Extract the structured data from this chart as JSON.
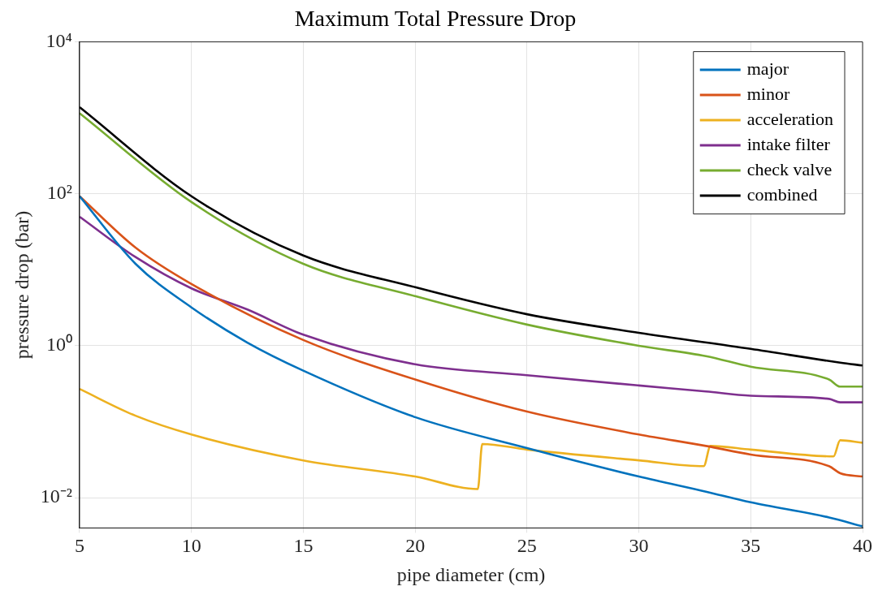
{
  "chart_data": {
    "type": "line",
    "title": "Maximum Total Pressure Drop",
    "xlabel": "pipe diameter (cm)",
    "ylabel": "pressure drop (bar)",
    "log": "y",
    "grid": true,
    "legend": "top right",
    "marker": "none",
    "line_style": "solid",
    "xlim": [
      5,
      40
    ],
    "xticks": [
      5,
      10,
      15,
      20,
      25,
      30,
      35,
      40
    ],
    "ylim": [
      0.004,
      10000
    ],
    "yticks": [
      {
        "value": 0.01,
        "label": "10⁻²"
      },
      {
        "value": 1,
        "label": "10⁰"
      },
      {
        "value": 100,
        "label": "10²"
      },
      {
        "value": 10000,
        "label": "10⁴"
      }
    ],
    "series": [
      {
        "name": "major",
        "color": "#0072bd",
        "x": [
          5,
          7.5,
          10,
          12.5,
          15,
          20,
          25,
          30,
          33,
          35,
          38.5,
          40
        ],
        "values": [
          93,
          12,
          3.2,
          1.1,
          0.47,
          0.115,
          0.045,
          0.019,
          0.012,
          0.0087,
          0.0055,
          0.0042
        ]
      },
      {
        "name": "minor",
        "color": "#d95319",
        "x": [
          5,
          7.5,
          10,
          15,
          20,
          25,
          30,
          33,
          35,
          38.5,
          39,
          40
        ],
        "values": [
          93,
          19.6,
          6.5,
          1.19,
          0.36,
          0.136,
          0.068,
          0.048,
          0.037,
          0.026,
          0.021,
          0.019
        ]
      },
      {
        "name": "acceleration",
        "color": "#edb120",
        "x": [
          5,
          7.5,
          10,
          15,
          20,
          22.8,
          23,
          25,
          30,
          32.9,
          33.2,
          35,
          38.7,
          39,
          40
        ],
        "values": [
          0.27,
          0.12,
          0.068,
          0.031,
          0.019,
          0.013,
          0.051,
          0.043,
          0.031,
          0.026,
          0.048,
          0.043,
          0.035,
          0.057,
          0.053
        ]
      },
      {
        "name": "intake filter",
        "color": "#7e2f8e",
        "x": [
          5,
          7.5,
          10,
          12.5,
          15,
          20,
          25,
          30,
          33,
          35,
          38.5,
          39,
          40
        ],
        "values": [
          50,
          14.7,
          5.7,
          3.0,
          1.4,
          0.57,
          0.41,
          0.3,
          0.25,
          0.22,
          0.2,
          0.18,
          0.18
        ]
      },
      {
        "name": "check valve",
        "color": "#77ac30",
        "x": [
          5,
          10,
          15,
          20,
          25,
          30,
          33,
          35,
          38.5,
          39,
          40
        ],
        "values": [
          1150,
          78,
          12,
          4.5,
          1.9,
          1.0,
          0.73,
          0.53,
          0.36,
          0.29,
          0.29
        ]
      },
      {
        "name": "combined",
        "color": "#000000",
        "x": [
          5,
          10,
          15,
          20,
          25,
          30,
          35,
          39,
          40
        ],
        "values": [
          1380,
          93,
          15.4,
          5.9,
          2.6,
          1.48,
          0.91,
          0.6,
          0.55
        ]
      }
    ]
  }
}
